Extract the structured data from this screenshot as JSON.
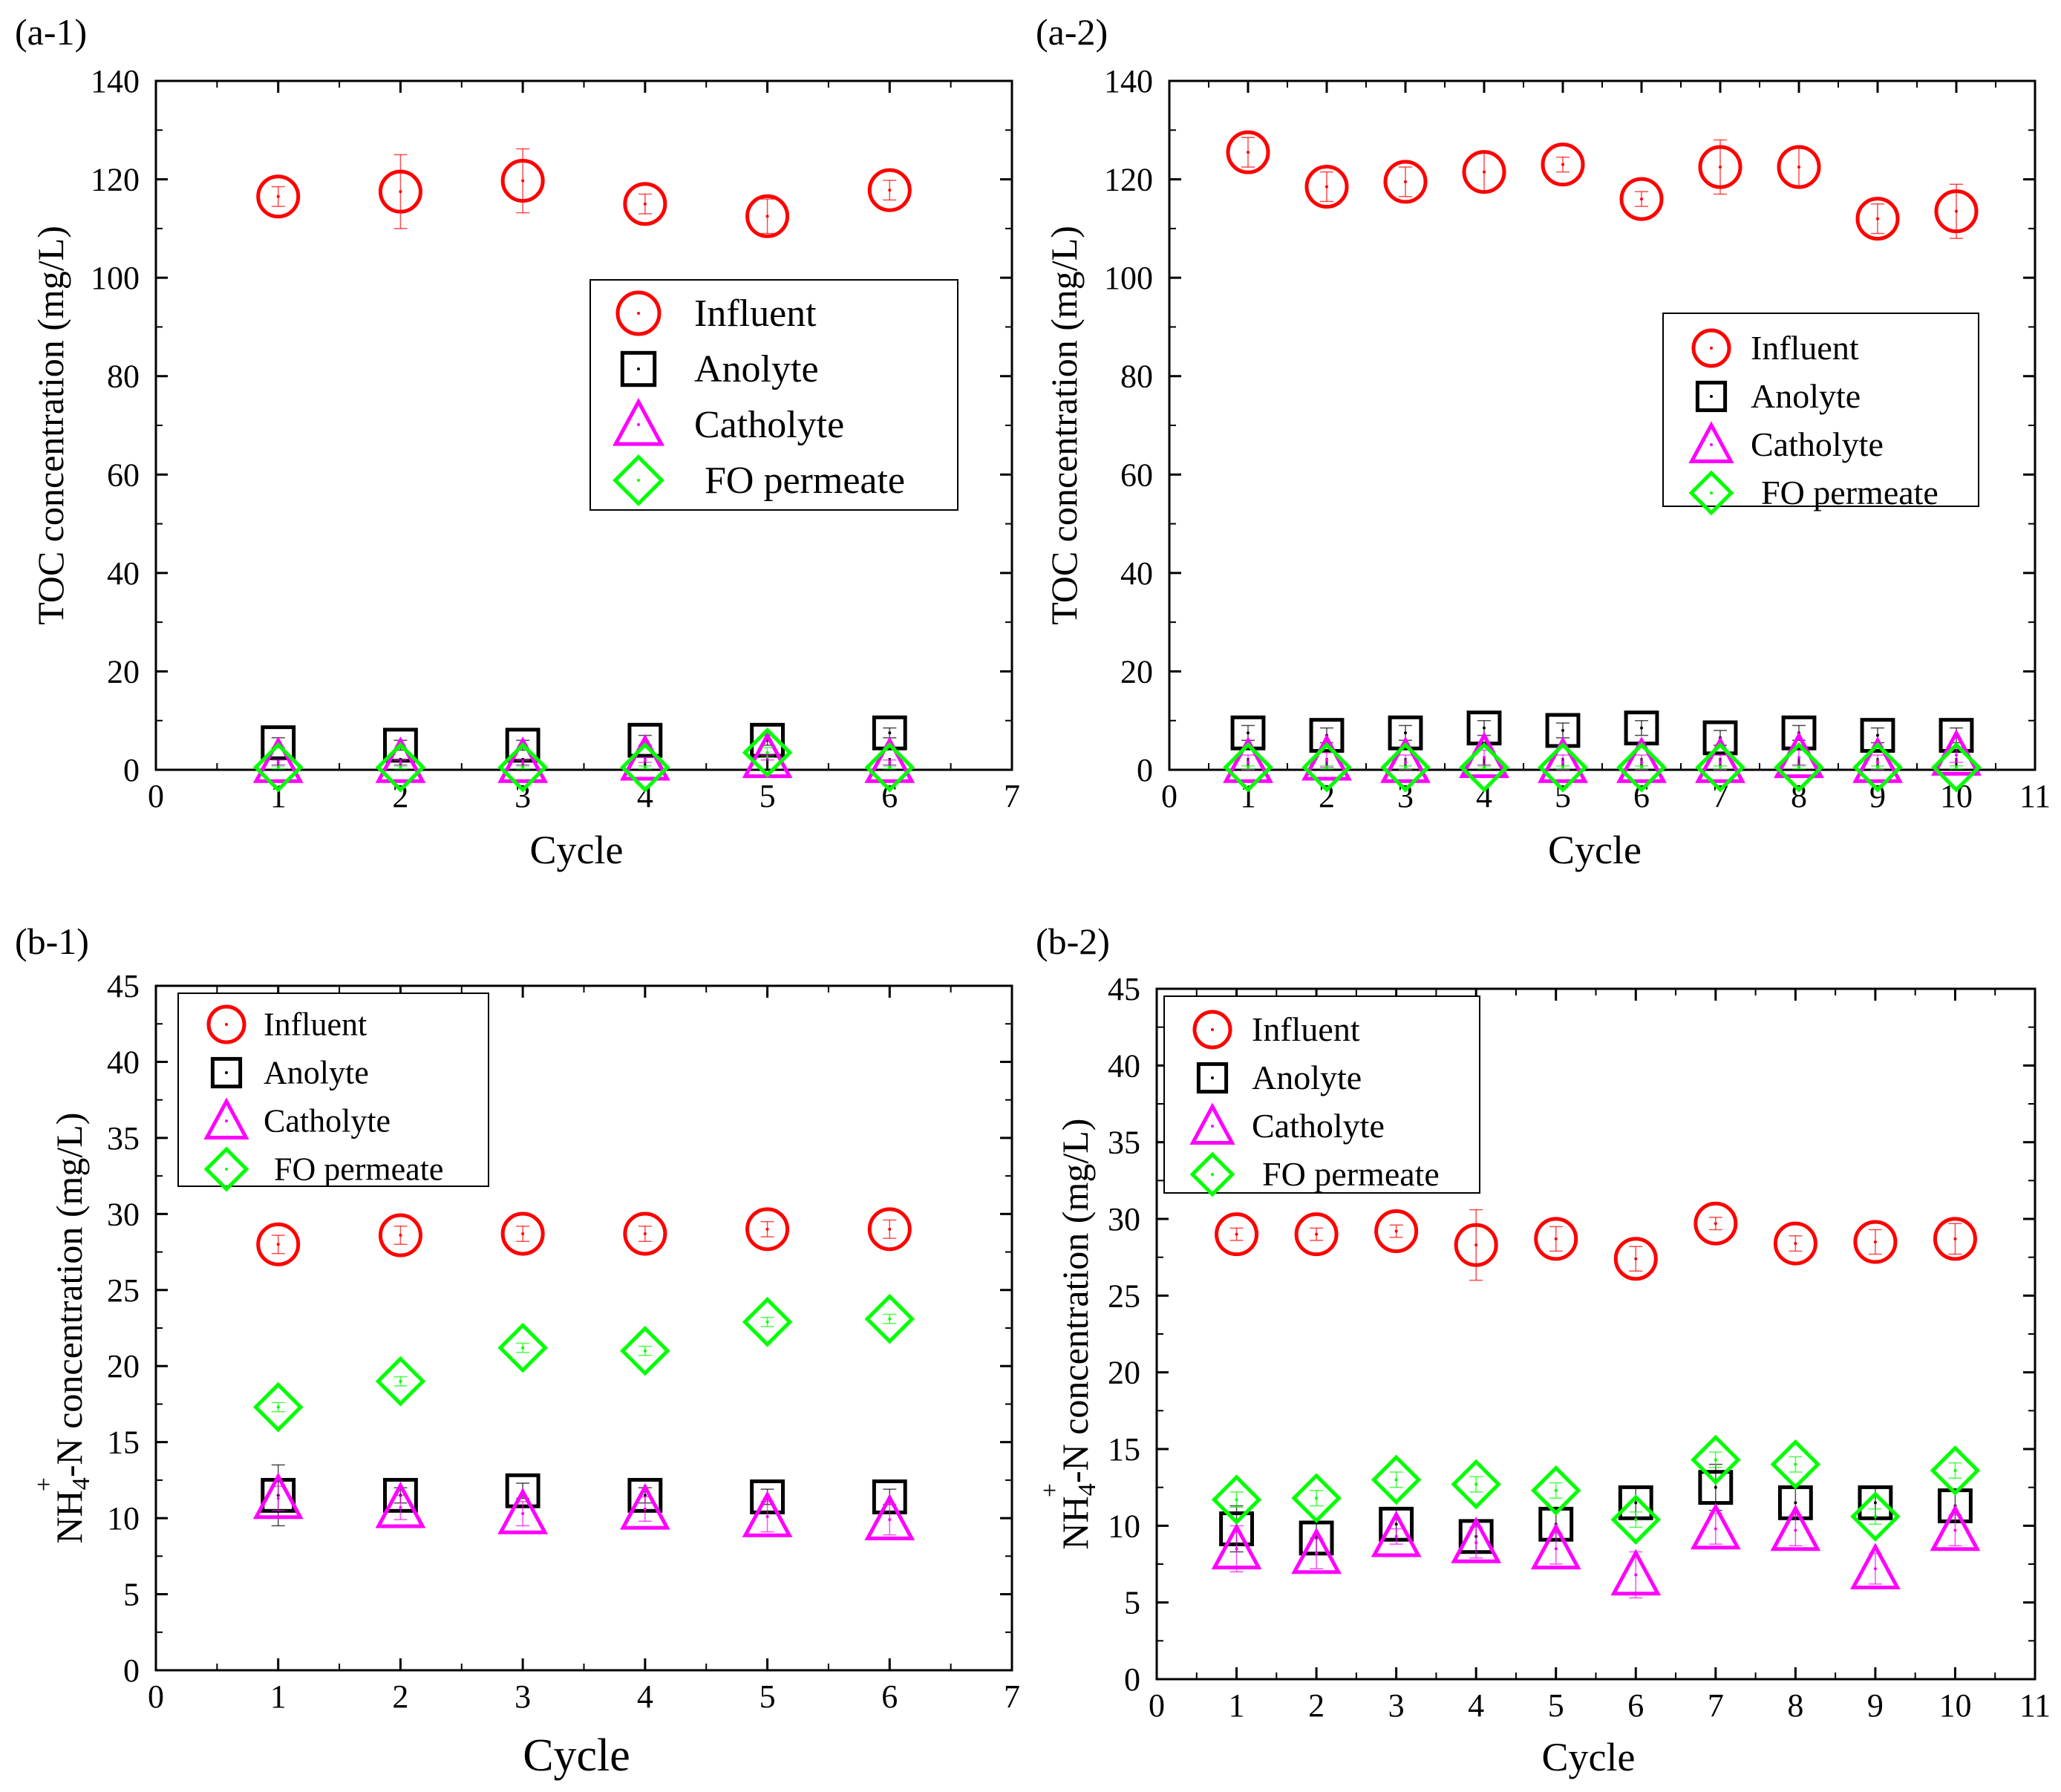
{
  "figure": {
    "colors": {
      "influent": "#ff0000",
      "anolyte": "#000000",
      "catholyte": "#ff00ff",
      "fo_permeate": "#00ff00"
    }
  },
  "chart_data": [
    {
      "id": "a-1",
      "type": "scatter",
      "panel_label": "(a-1)",
      "xlabel": "Cycle",
      "ylabel": "TOC concentration (mg/L)",
      "xlim": [
        0,
        7
      ],
      "ylim": [
        0,
        140
      ],
      "xticks": [
        "0",
        "1",
        "2",
        "3",
        "4",
        "5",
        "6",
        "7"
      ],
      "yticks": [
        "0",
        "20",
        "40",
        "60",
        "80",
        "100",
        "120",
        "140"
      ],
      "legend_position": "center-right",
      "x": [
        1,
        2,
        3,
        4,
        5,
        6
      ],
      "series": [
        {
          "name": "Influent",
          "marker": "circle",
          "color": "#ff0000",
          "values": [
            116.5,
            117.5,
            119.7,
            115.0,
            112.5,
            117.8
          ],
          "errors": [
            2.0,
            7.5,
            6.5,
            2.0,
            3.5,
            2.0
          ]
        },
        {
          "name": "Anolyte",
          "marker": "square",
          "color": "#000000",
          "values": [
            5.5,
            5.0,
            5.0,
            6.0,
            6.0,
            7.5
          ],
          "errors": [
            1.0,
            1.0,
            1.0,
            1.0,
            1.0,
            1.0
          ]
        },
        {
          "name": "Catholyte",
          "marker": "triangle",
          "color": "#ff00ff",
          "values": [
            1.5,
            1.5,
            1.5,
            2.0,
            2.5,
            1.5
          ],
          "errors": [
            0.5,
            0.5,
            0.5,
            0.5,
            0.5,
            0.5
          ]
        },
        {
          "name": "FO permeate",
          "marker": "diamond",
          "color": "#00ff00",
          "values": [
            0.5,
            0.5,
            0.5,
            0.5,
            3.5,
            0.5
          ],
          "errors": [
            0.3,
            0.3,
            0.3,
            0.3,
            1.0,
            0.3
          ]
        }
      ]
    },
    {
      "id": "a-2",
      "type": "scatter",
      "panel_label": "(a-2)",
      "xlabel": "Cycle",
      "ylabel": "TOC concentration (mg/L)",
      "xlim": [
        0,
        11
      ],
      "ylim": [
        0,
        140
      ],
      "xticks": [
        "0",
        "1",
        "2",
        "3",
        "4",
        "5",
        "6",
        "7",
        "8",
        "9",
        "10",
        "11"
      ],
      "yticks": [
        "0",
        "20",
        "40",
        "60",
        "80",
        "100",
        "120",
        "140"
      ],
      "legend_position": "center-right",
      "x": [
        1,
        2,
        3,
        4,
        5,
        6,
        7,
        8,
        9,
        10
      ],
      "series": [
        {
          "name": "Influent",
          "marker": "circle",
          "color": "#ff0000",
          "values": [
            125.5,
            118.5,
            119.5,
            121.5,
            123.0,
            116.0,
            122.5,
            122.5,
            112.0,
            113.5
          ],
          "errors": [
            3.0,
            3.0,
            3.0,
            4.0,
            1.5,
            1.5,
            5.5,
            4.0,
            3.0,
            5.5
          ]
        },
        {
          "name": "Anolyte",
          "marker": "square",
          "color": "#000000",
          "values": [
            7.5,
            7.0,
            7.5,
            8.5,
            8.0,
            8.5,
            6.5,
            7.5,
            7.0,
            7.0
          ],
          "errors": [
            1.5,
            1.5,
            1.5,
            1.5,
            1.5,
            1.5,
            1.5,
            1.5,
            1.5,
            1.5
          ]
        },
        {
          "name": "Catholyte",
          "marker": "triangle",
          "color": "#ff00ff",
          "values": [
            1.5,
            2.0,
            1.5,
            2.5,
            1.5,
            1.5,
            1.5,
            2.5,
            1.5,
            3.0
          ],
          "errors": [
            1.5,
            1.5,
            1.5,
            1.5,
            1.5,
            1.5,
            1.5,
            1.5,
            1.5,
            1.5
          ]
        },
        {
          "name": "FO permeate",
          "marker": "diamond",
          "color": "#00ff00",
          "values": [
            0.5,
            0.5,
            0.5,
            0.5,
            0.5,
            0.5,
            0.5,
            0.5,
            0.5,
            0.5
          ],
          "errors": [
            0.3,
            0.3,
            0.3,
            0.3,
            0.3,
            0.3,
            0.3,
            0.3,
            0.3,
            0.3
          ]
        }
      ]
    },
    {
      "id": "b-1",
      "type": "scatter",
      "panel_label": "(b-1)",
      "xlabel": "Cycle",
      "ylabel_main": "NH",
      "ylabel_sub": "4",
      "ylabel_sup": "+",
      "ylabel_rest": "-N concentration (mg/L)",
      "xlim": [
        0,
        7
      ],
      "ylim": [
        0,
        45
      ],
      "xticks": [
        "0",
        "1",
        "2",
        "3",
        "4",
        "5",
        "6",
        "7"
      ],
      "yticks": [
        "0",
        "5",
        "10",
        "15",
        "20",
        "25",
        "30",
        "35",
        "40",
        "45"
      ],
      "legend_position": "top-left",
      "x": [
        1,
        2,
        3,
        4,
        5,
        6
      ],
      "series": [
        {
          "name": "Influent",
          "marker": "circle",
          "color": "#ff0000",
          "values": [
            28.0,
            28.6,
            28.7,
            28.7,
            29.0,
            29.0
          ],
          "errors": [
            0.6,
            0.6,
            0.5,
            0.5,
            0.5,
            0.6
          ]
        },
        {
          "name": "Anolyte",
          "marker": "square",
          "color": "#000000",
          "values": [
            11.5,
            11.5,
            11.8,
            11.5,
            11.4,
            11.4
          ],
          "errors": [
            2.0,
            0.5,
            0.5,
            0.5,
            0.5,
            0.5
          ]
        },
        {
          "name": "Catholyte",
          "marker": "triangle",
          "color": "#ff00ff",
          "values": [
            11.3,
            10.7,
            10.3,
            10.6,
            10.1,
            9.9
          ],
          "errors": [
            0.8,
            0.8,
            0.8,
            0.8,
            1.0,
            1.0
          ]
        },
        {
          "name": "FO permeate",
          "marker": "diamond",
          "color": "#00ff00",
          "values": [
            17.3,
            19.0,
            21.2,
            21.0,
            22.9,
            23.1
          ],
          "errors": [
            0.3,
            0.3,
            0.3,
            0.3,
            0.3,
            0.3
          ]
        }
      ]
    },
    {
      "id": "b-2",
      "type": "scatter",
      "panel_label": "(b-2)",
      "xlabel": "Cycle",
      "ylabel_main": "NH",
      "ylabel_sub": "4",
      "ylabel_sup": "+",
      "ylabel_rest": "-N concentration (mg/L)",
      "xlim": [
        0,
        11
      ],
      "ylim": [
        0,
        45
      ],
      "xticks": [
        "0",
        "1",
        "2",
        "3",
        "4",
        "5",
        "6",
        "7",
        "8",
        "9",
        "10",
        "11"
      ],
      "yticks": [
        "0",
        "5",
        "10",
        "15",
        "20",
        "25",
        "30",
        "35",
        "40",
        "45"
      ],
      "legend_position": "top-left",
      "x": [
        1,
        2,
        3,
        4,
        5,
        6,
        7,
        8,
        9,
        10
      ],
      "series": [
        {
          "name": "Influent",
          "marker": "circle",
          "color": "#ff0000",
          "values": [
            29.0,
            29.0,
            29.2,
            28.3,
            28.7,
            27.4,
            29.7,
            28.4,
            28.5,
            28.7
          ],
          "errors": [
            0.4,
            0.4,
            0.4,
            2.3,
            0.8,
            0.8,
            0.4,
            0.5,
            0.8,
            1.0
          ]
        },
        {
          "name": "Anolyte",
          "marker": "square",
          "color": "#000000",
          "values": [
            9.8,
            9.2,
            10.1,
            9.3,
            10.1,
            11.5,
            12.5,
            11.5,
            11.5,
            11.3
          ],
          "errors": [
            1.5,
            1.0,
            1.0,
            1.0,
            1.0,
            1.0,
            1.5,
            1.0,
            1.0,
            1.0
          ]
        },
        {
          "name": "Catholyte",
          "marker": "triangle",
          "color": "#ff00ff",
          "values": [
            8.5,
            8.2,
            9.3,
            8.9,
            8.5,
            6.8,
            9.8,
            9.7,
            7.2,
            9.7
          ],
          "errors": [
            1.5,
            1.0,
            0.5,
            1.0,
            1.0,
            1.5,
            1.0,
            1.0,
            1.0,
            1.0
          ]
        },
        {
          "name": "FO permeate",
          "marker": "diamond",
          "color": "#00ff00",
          "values": [
            11.7,
            11.8,
            13.0,
            12.7,
            12.3,
            10.4,
            14.3,
            14.0,
            10.6,
            13.6
          ],
          "errors": [
            0.5,
            0.5,
            0.5,
            0.5,
            0.5,
            0.5,
            0.5,
            0.5,
            0.5,
            0.5
          ]
        }
      ]
    }
  ]
}
